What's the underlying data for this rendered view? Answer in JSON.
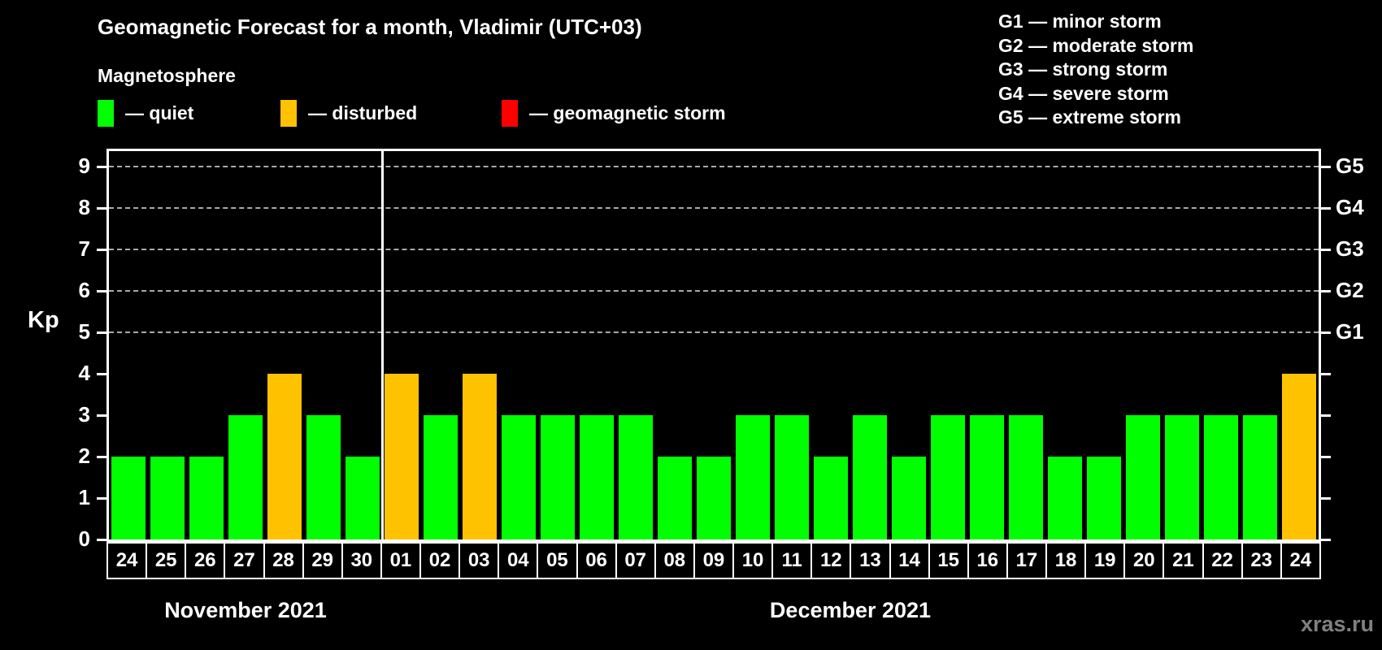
{
  "title": "Geomagnetic Forecast for a month, Vladimir (UTC+03)",
  "subtitle": "Magnetosphere",
  "legend": {
    "quiet": {
      "label": "— quiet",
      "color": "#00FF00"
    },
    "disturbed": {
      "label": "— disturbed",
      "color": "#FFC200"
    },
    "storm": {
      "label": "— geomagnetic storm",
      "color": "#FF0000"
    }
  },
  "g_legend": [
    "G1 — minor storm",
    "G2 — moderate storm",
    "G3 — strong storm",
    "G4 — severe storm",
    "G5 — extreme storm"
  ],
  "watermark": "xras.ru",
  "chart_data": {
    "type": "bar",
    "ylabel": "Kp",
    "ylim": [
      0,
      9.4
    ],
    "yticks": [
      0,
      1,
      2,
      3,
      4,
      5,
      6,
      7,
      8,
      9
    ],
    "right_axis": [
      {
        "label": "G1",
        "kp": 5
      },
      {
        "label": "G2",
        "kp": 6
      },
      {
        "label": "G3",
        "kp": 7
      },
      {
        "label": "G4",
        "kp": 8
      },
      {
        "label": "G5",
        "kp": 9
      }
    ],
    "gridlines_kp": [
      5,
      6,
      7,
      8,
      9
    ],
    "grid_style": "dashed horizontal lines at Kp 5-9 only",
    "legend_position": "top-left",
    "colors": {
      "quiet": "#00FF00",
      "disturbed": "#FFC200",
      "storm": "#FF0000"
    },
    "color_rule": {
      "quiet_max_kp": 3,
      "disturbed_kp": 4,
      "storm_min_kp": 5
    },
    "months": [
      {
        "label": "November 2021",
        "days": [
          [
            "24",
            2
          ],
          [
            "25",
            2
          ],
          [
            "26",
            2
          ],
          [
            "27",
            3
          ],
          [
            "28",
            4
          ],
          [
            "29",
            3
          ],
          [
            "30",
            2
          ]
        ]
      },
      {
        "label": "December 2021",
        "days": [
          [
            "01",
            4
          ],
          [
            "02",
            3
          ],
          [
            "03",
            4
          ],
          [
            "04",
            3
          ],
          [
            "05",
            3
          ],
          [
            "06",
            3
          ],
          [
            "07",
            3
          ],
          [
            "08",
            2
          ],
          [
            "09",
            2
          ],
          [
            "10",
            3
          ],
          [
            "11",
            3
          ],
          [
            "12",
            2
          ],
          [
            "13",
            3
          ],
          [
            "14",
            2
          ],
          [
            "15",
            3
          ],
          [
            "16",
            3
          ],
          [
            "17",
            3
          ],
          [
            "18",
            2
          ],
          [
            "19",
            2
          ],
          [
            "20",
            3
          ],
          [
            "21",
            3
          ],
          [
            "22",
            3
          ],
          [
            "23",
            3
          ],
          [
            "24",
            4
          ]
        ]
      }
    ]
  }
}
